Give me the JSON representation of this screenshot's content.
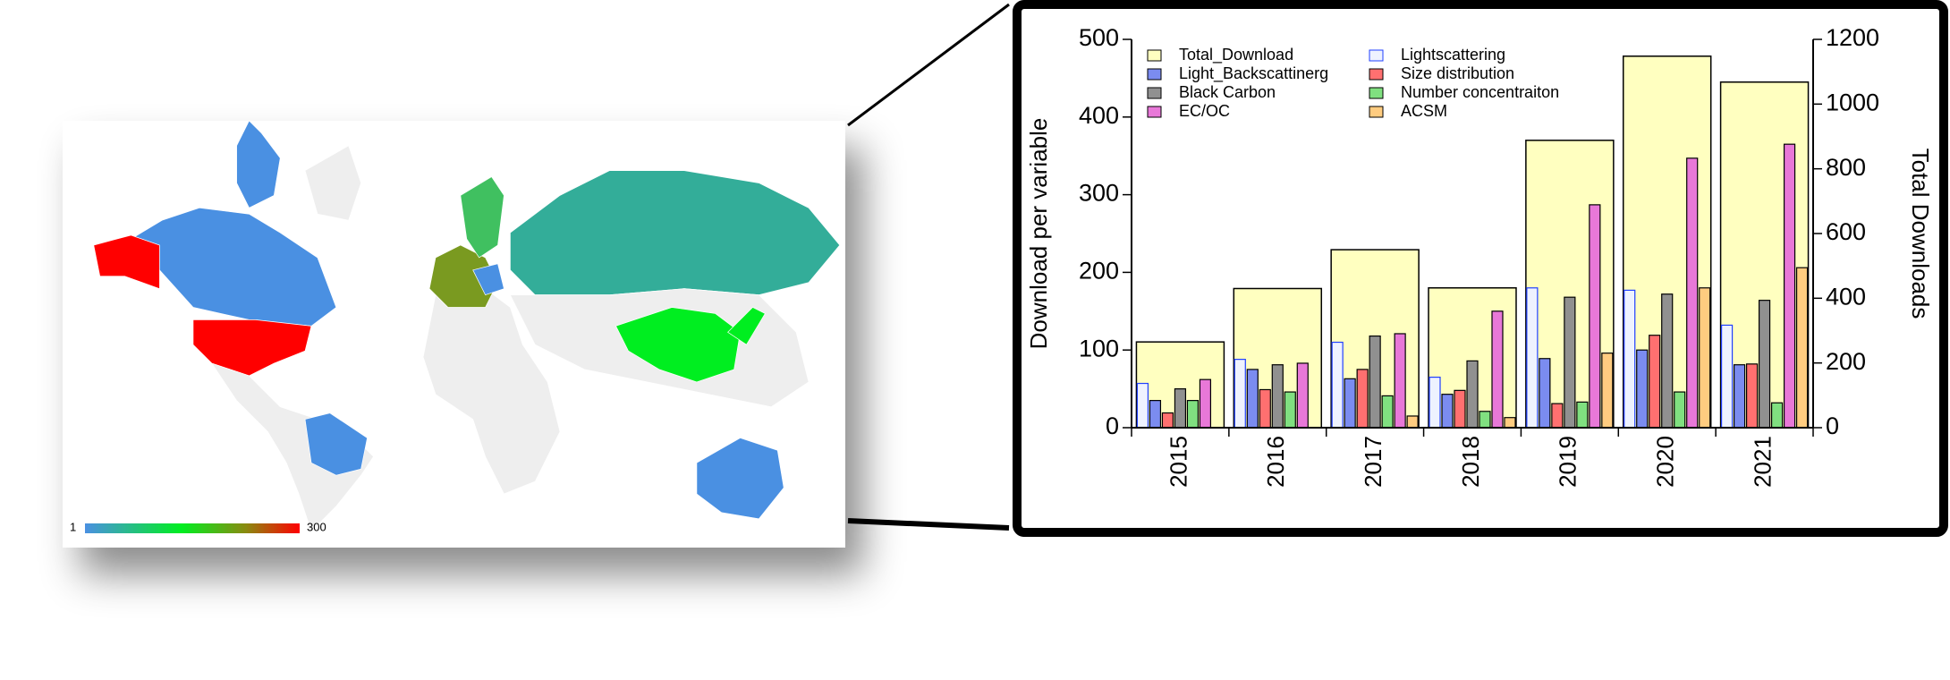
{
  "map_legend": {
    "min_label": "1",
    "max_label": "300"
  },
  "chart_data": {
    "type": "bar",
    "categories": [
      "2015",
      "2016",
      "2017",
      "2018",
      "2019",
      "2020",
      "2021"
    ],
    "ylabel": "Download per variable",
    "y2label": "Total Downloads",
    "ylim": [
      0,
      500
    ],
    "yticks": [
      0,
      100,
      200,
      300,
      400,
      500
    ],
    "y2lim": [
      0,
      1200
    ],
    "y2ticks": [
      0,
      200,
      400,
      600,
      800,
      1000,
      1200
    ],
    "series": [
      {
        "name": "Total_Download",
        "color": "#ffffc0",
        "axis": "y2",
        "values": [
          265,
          430,
          550,
          432,
          888,
          1148,
          1068
        ]
      },
      {
        "name": "Lightscattering",
        "color": "#eef2ff",
        "values": [
          57,
          88,
          110,
          65,
          180,
          177,
          132
        ]
      },
      {
        "name": "Light_Backscattinerg",
        "color": "#7b8cf0",
        "values": [
          35,
          75,
          63,
          43,
          89,
          100,
          81
        ]
      },
      {
        "name": "Size distribution",
        "color": "#ff7070",
        "values": [
          19,
          49,
          75,
          48,
          31,
          119,
          82
        ]
      },
      {
        "name": "Black Carbon",
        "color": "#909090",
        "values": [
          50,
          81,
          118,
          86,
          168,
          172,
          164
        ]
      },
      {
        "name": "Number concentraiton",
        "color": "#80e080",
        "values": [
          35,
          46,
          41,
          21,
          33,
          46,
          32
        ]
      },
      {
        "name": "EC/OC",
        "color": "#e878d8",
        "values": [
          62,
          83,
          121,
          150,
          287,
          347,
          365
        ]
      },
      {
        "name": "ACSM",
        "color": "#ffcc80",
        "values": [
          0,
          0,
          15,
          13,
          96,
          180,
          206
        ]
      }
    ]
  }
}
